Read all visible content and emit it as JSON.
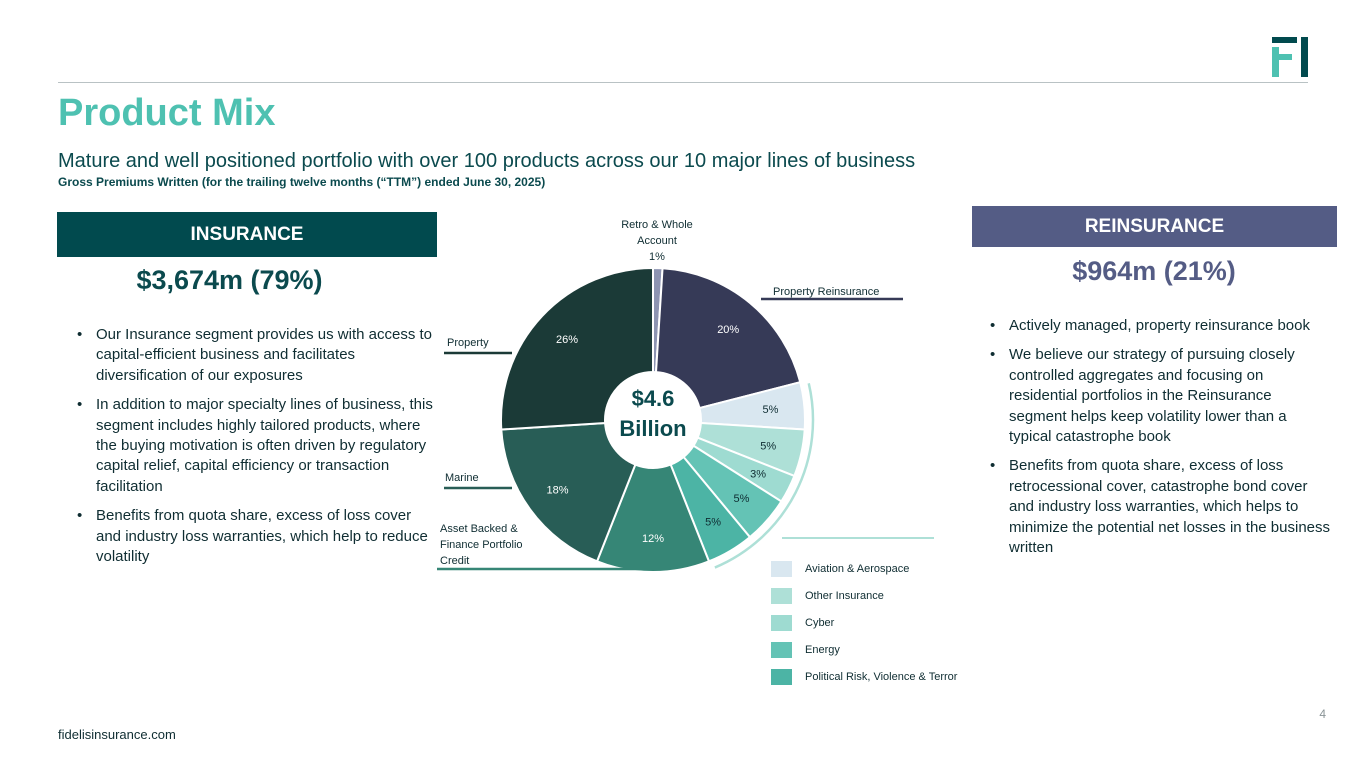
{
  "header": {
    "title": "Product Mix",
    "subtitle": "Mature and well positioned portfolio with over 100 products across our 10 major lines of business",
    "note": "Gross Premiums Written (for the trailing twelve months (“TTM”) ended June 30, 2025)"
  },
  "logo": {
    "name": "fidelis-logo",
    "color": "#014a4e",
    "accent": "#4ec1b1"
  },
  "insurance": {
    "banner": "INSURANCE",
    "amount": "$3,674m (79%)",
    "bullets": [
      "Our Insurance segment provides us with access to capital-efficient business and facilitates diversification of our exposures",
      "In addition to major specialty lines of business, this segment includes highly tailored products, where the buying motivation is often driven by regulatory capital relief, capital efficiency or transaction facilitation",
      "Benefits from quota share, excess of loss cover and industry loss warranties, which help to reduce volatility"
    ]
  },
  "reinsurance": {
    "banner": "REINSURANCE",
    "amount": "$964m (21%)",
    "bullets": [
      "Actively managed, property reinsurance book",
      "We believe our strategy of pursuing closely controlled aggregates and focusing on residential portfolios in the Reinsurance segment helps keep volatility lower than a typical catastrophe book",
      "Benefits from quota share, excess of loss retrocessional cover, catastrophe bond cover and industry loss warranties, which helps to minimize the potential net losses in the business written"
    ]
  },
  "chart_data": {
    "type": "pie",
    "style": "donut",
    "center_label": [
      "$4.6",
      "Billion"
    ],
    "slices": [
      {
        "name": "Retro & Whole Account",
        "label": "Retro & Whole\nAccount",
        "value": 1,
        "color": "#8d94b2"
      },
      {
        "name": "Property Reinsurance",
        "label": "Property Reinsurance",
        "value": 20,
        "color": "#363a57"
      },
      {
        "name": "Aviation & Aerospace",
        "value": 5,
        "color": "#d9e7f0"
      },
      {
        "name": "Other Insurance",
        "value": 5,
        "color": "#aee0d7"
      },
      {
        "name": "Cyber",
        "value": 3,
        "color": "#9edbd1"
      },
      {
        "name": "Energy",
        "value": 5,
        "color": "#64c3b5"
      },
      {
        "name": "Political Risk, Violence & Terror",
        "value": 5,
        "color": "#4cb4a5"
      },
      {
        "name": "Asset Backed & Finance Portfolio Credit",
        "label": "Asset Backed &\nFinance Portfolio\nCredit",
        "value": 12,
        "color": "#368676"
      },
      {
        "name": "Marine",
        "label": "Marine",
        "value": 18,
        "color": "#285d56"
      },
      {
        "name": "Property",
        "label": "Property",
        "value": 26,
        "color": "#1b3a37"
      }
    ],
    "value_labels": [
      "1%",
      "20%",
      "5%",
      "5%",
      "3%",
      "5%",
      "5%",
      "12%",
      "18%",
      "26%"
    ],
    "legend": [
      {
        "label": "Aviation & Aerospace",
        "color": "#d9e7f0"
      },
      {
        "label": "Other Insurance",
        "color": "#aee0d7"
      },
      {
        "label": "Cyber",
        "color": "#9edbd1"
      },
      {
        "label": "Energy",
        "color": "#64c3b5"
      },
      {
        "label": "Political Risk, Violence & Terror",
        "color": "#4cb4a5"
      }
    ]
  },
  "footer": {
    "site": "fidelisinsurance.com",
    "page": "4"
  }
}
